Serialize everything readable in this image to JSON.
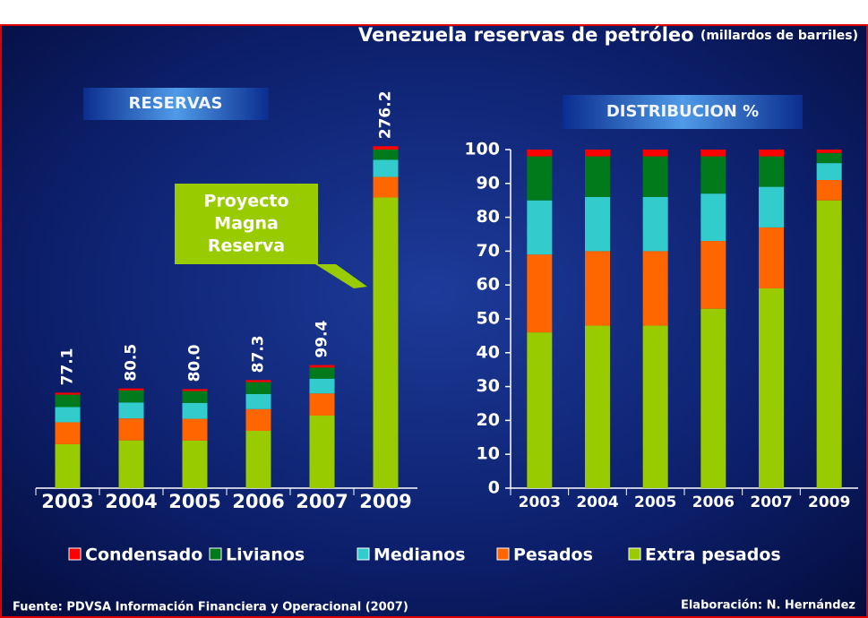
{
  "title": "Venezuela reservas de petróleo",
  "title_unit": "(millardos  de barriles)",
  "annotation": [
    "Proyecto",
    "Magna",
    "Reserva"
  ],
  "source": "Fuente: PDVSA Información Financiera y Operacional (2007)",
  "credit": "Elaboración: N. Hernández",
  "chart_data": [
    {
      "type": "bar",
      "stacked": true,
      "title": "RESERVAS",
      "categories": [
        "2003",
        "2004",
        "2005",
        "2006",
        "2007",
        "2009"
      ],
      "ylim": [
        0,
        280
      ],
      "series": [
        {
          "name": "Extra pesados",
          "color": "#99cc00",
          "values": [
            35.5,
            38.6,
            38.4,
            46.3,
            58.6,
            234.8
          ]
        },
        {
          "name": "Pesados",
          "color": "#ff6600",
          "values": [
            17.7,
            17.7,
            17.6,
            17.5,
            17.9,
            16.6
          ]
        },
        {
          "name": "Medianos",
          "color": "#33cccc",
          "values": [
            12.3,
            12.9,
            12.8,
            12.2,
            11.9,
            13.8
          ]
        },
        {
          "name": "Livianos",
          "color": "#007a1a",
          "values": [
            10.0,
            9.7,
            9.6,
            9.6,
            9.0,
            8.3
          ]
        },
        {
          "name": "Condensado",
          "color": "#ff0000",
          "values": [
            1.6,
            1.6,
            1.6,
            1.7,
            2.0,
            2.7
          ]
        }
      ],
      "totals": {
        "values": [
          77.1,
          80.5,
          80.0,
          87.3,
          99.4,
          276.2
        ],
        "value_labels": [
          "77.1",
          "80.5",
          "80.0",
          "87.3",
          "99.4",
          "276.2"
        ]
      }
    },
    {
      "type": "bar",
      "stacked": true,
      "title": "DISTRIBUCION  %",
      "categories": [
        "2003",
        "2004",
        "2005",
        "2006",
        "2007",
        "2009"
      ],
      "ylim": [
        0,
        100
      ],
      "yticks": [
        0,
        10,
        20,
        30,
        40,
        50,
        60,
        70,
        80,
        90,
        100
      ],
      "series": [
        {
          "values": [
            46,
            48,
            48,
            53,
            59,
            85
          ]
        },
        {
          "values": [
            23,
            22,
            22,
            20,
            18,
            6
          ]
        },
        {
          "values": [
            16,
            16,
            16,
            14,
            12,
            5
          ]
        },
        {
          "values": [
            13,
            12,
            12,
            11,
            9,
            3
          ]
        },
        {
          "values": [
            2,
            2,
            2,
            2,
            2,
            1
          ]
        }
      ]
    }
  ]
}
